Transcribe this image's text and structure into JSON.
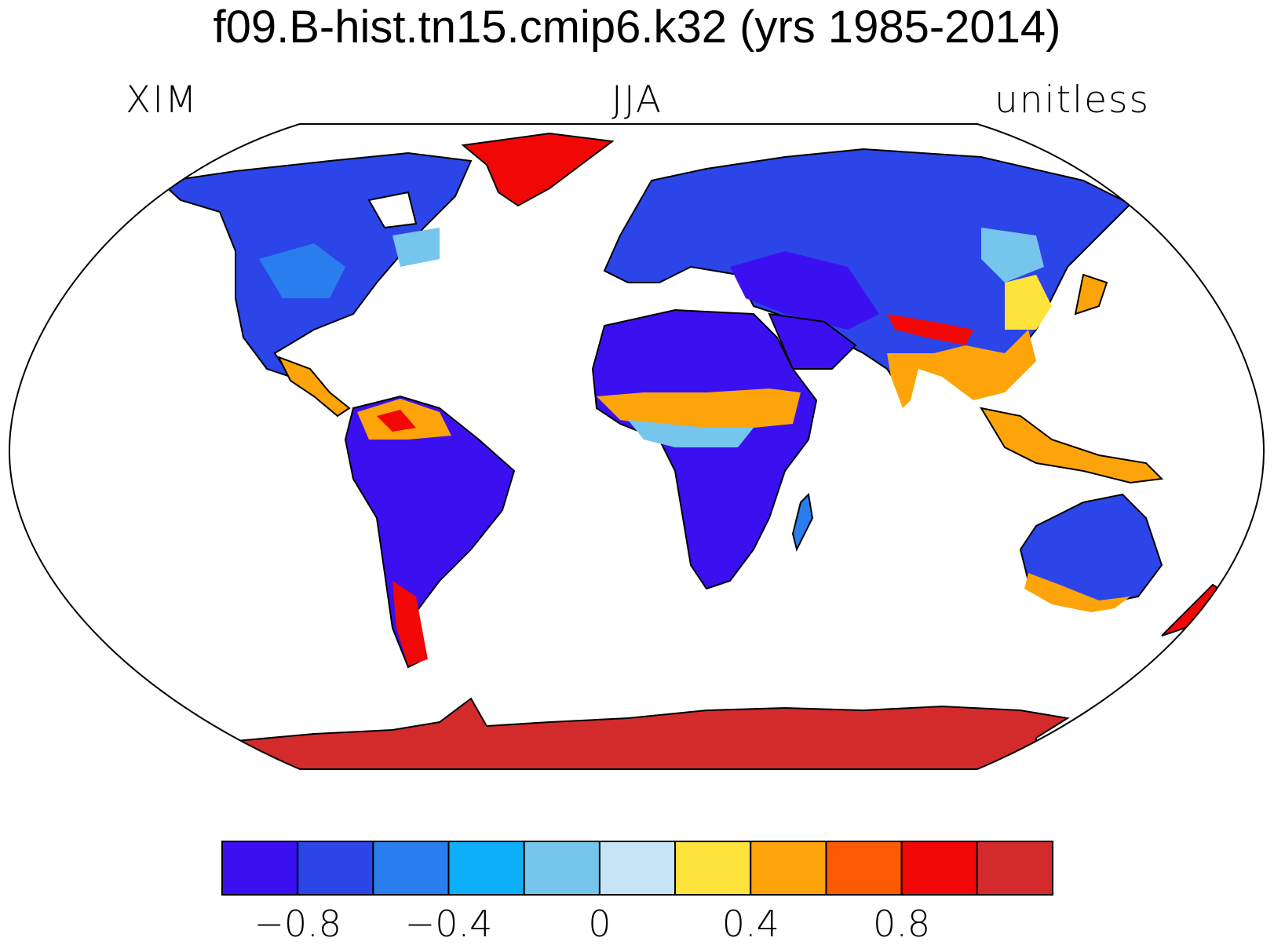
{
  "title": "f09.B-hist.tn15.cmip6.k32 (yrs 1985-2014)",
  "subtitles": {
    "left": "XIM",
    "center": "JJA",
    "right": "unitless"
  },
  "colorbar": {
    "colors": [
      "#3a10f0",
      "#2b45e8",
      "#2a7ded",
      "#0db0f8",
      "#76c5ec",
      "#c5e4f5",
      "#fde33a",
      "#fda40a",
      "#fd5a05",
      "#f20707",
      "#d32b2b"
    ],
    "tick_labels": [
      "−0.8",
      "−0.4",
      "0",
      "0.4",
      "0.8"
    ],
    "tick_values": [
      -0.8,
      -0.4,
      0,
      0.4,
      0.8
    ],
    "bounds": [
      -1.0,
      1.2
    ]
  },
  "map": {
    "projection": "Robinson",
    "land_missing_color": "#ffffff"
  }
}
